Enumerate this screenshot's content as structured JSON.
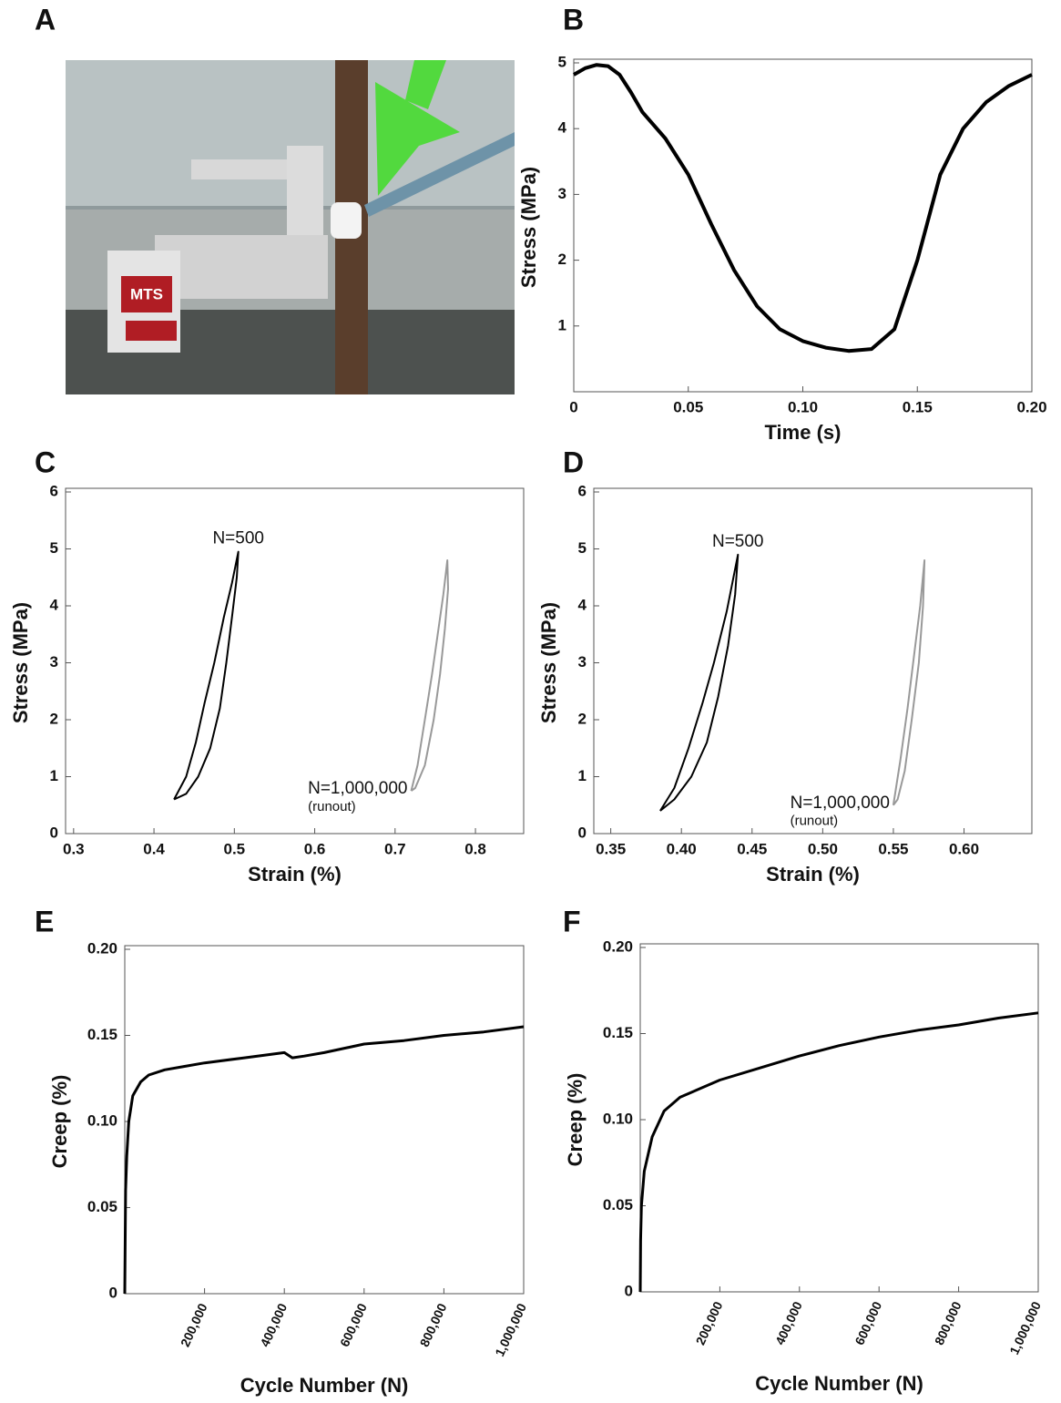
{
  "photo": {
    "panel": "A",
    "label": "MTS"
  },
  "chart_data": [
    {
      "type": "line",
      "panel": "B",
      "xlabel": "Time (s)",
      "ylabel": "Stress (MPa)",
      "xlim": [
        0,
        0.2
      ],
      "ylim": [
        0,
        5
      ],
      "xticks": [
        0,
        0.05,
        {
          "value": 0.1,
          "label": "0.10"
        },
        0.15,
        {
          "value": 0.2,
          "label": "0.20"
        }
      ],
      "yticks": [
        1,
        2,
        3,
        4,
        5
      ],
      "series": [
        {
          "name": null,
          "color": "#000000",
          "x": [
            0,
            0.005,
            0.01,
            0.015,
            0.02,
            0.025,
            0.03,
            0.04,
            0.05,
            0.06,
            0.07,
            0.08,
            0.09,
            0.1,
            0.11,
            0.12,
            0.13,
            0.14,
            0.15,
            0.16,
            0.17,
            0.18,
            0.19,
            0.2
          ],
          "values": [
            4.82,
            4.92,
            4.97,
            4.95,
            4.82,
            4.55,
            4.25,
            3.85,
            3.3,
            2.55,
            1.85,
            1.3,
            0.95,
            0.77,
            0.67,
            0.62,
            0.65,
            0.95,
            2.0,
            3.3,
            4.0,
            4.4,
            4.65,
            4.82
          ]
        }
      ]
    },
    {
      "type": "line",
      "panel": "C",
      "xlabel": "Strain (%)",
      "ylabel": "Stress (MPa)",
      "xlim": [
        0.29,
        0.86
      ],
      "ylim": [
        0,
        6
      ],
      "xticks": [
        0.3,
        0.4,
        0.5,
        0.6,
        0.7,
        0.8
      ],
      "yticks": [
        0,
        1,
        2,
        3,
        4,
        5,
        6
      ],
      "series": [
        {
          "name": "N=500",
          "color": "#000000",
          "x": [
            0.425,
            0.44,
            0.452,
            0.463,
            0.475,
            0.487,
            0.497,
            0.505,
            0.503,
            0.497,
            0.49,
            0.482,
            0.47,
            0.455,
            0.44,
            0.425
          ],
          "values": [
            0.6,
            1.0,
            1.6,
            2.3,
            3.0,
            3.8,
            4.4,
            4.95,
            4.5,
            3.8,
            3.0,
            2.2,
            1.5,
            1.0,
            0.7,
            0.6
          ]
        },
        {
          "name": "N=1,000,000",
          "note": "(runout)",
          "color": "#999999",
          "x": [
            0.72,
            0.728,
            0.737,
            0.746,
            0.754,
            0.76,
            0.765,
            0.766,
            0.762,
            0.756,
            0.748,
            0.737,
            0.725,
            0.72
          ],
          "values": [
            0.75,
            1.2,
            2.0,
            2.8,
            3.6,
            4.2,
            4.8,
            4.3,
            3.6,
            2.8,
            2.0,
            1.2,
            0.8,
            0.75
          ]
        }
      ]
    },
    {
      "type": "line",
      "panel": "D",
      "xlabel": "Strain (%)",
      "ylabel": "Stress (MPa)",
      "xlim": [
        0.338,
        0.648
      ],
      "ylim": [
        0,
        6
      ],
      "xticks": [
        0.35,
        {
          "value": 0.4,
          "label": "0.40"
        },
        0.45,
        {
          "value": 0.5,
          "label": "0.50"
        },
        0.55,
        {
          "value": 0.6,
          "label": "0.60"
        }
      ],
      "yticks": [
        0,
        1,
        2,
        3,
        4,
        5,
        6
      ],
      "series": [
        {
          "name": "N=500",
          "color": "#000000",
          "x": [
            0.385,
            0.395,
            0.405,
            0.415,
            0.423,
            0.432,
            0.44,
            0.438,
            0.433,
            0.426,
            0.418,
            0.407,
            0.395,
            0.385
          ],
          "values": [
            0.4,
            0.8,
            1.5,
            2.3,
            3.0,
            3.9,
            4.9,
            4.2,
            3.3,
            2.4,
            1.6,
            1.0,
            0.6,
            0.4
          ]
        },
        {
          "name": "N=1,000,000",
          "note": "(runout)",
          "color": "#999999",
          "x": [
            0.55,
            0.555,
            0.56,
            0.565,
            0.569,
            0.572,
            0.571,
            0.568,
            0.563,
            0.558,
            0.553,
            0.55
          ],
          "values": [
            0.5,
            1.3,
            2.2,
            3.2,
            4.0,
            4.8,
            4.0,
            3.0,
            2.0,
            1.1,
            0.6,
            0.5
          ]
        }
      ]
    },
    {
      "type": "line",
      "panel": "E",
      "xlabel": "Cycle Number (N)",
      "ylabel": "Creep (%)",
      "xlim": [
        0,
        1000000
      ],
      "ylim": [
        0,
        0.2
      ],
      "xticks": [
        {
          "value": 200000,
          "label": "200,000"
        },
        {
          "value": 400000,
          "label": "400,000"
        },
        {
          "value": 600000,
          "label": "600,000"
        },
        {
          "value": 800000,
          "label": "800,000"
        },
        {
          "value": 1000000,
          "label": "1,000,000"
        }
      ],
      "yticks": [
        0,
        0.05,
        {
          "value": 0.1,
          "label": "0.10"
        },
        0.15,
        {
          "value": 0.2,
          "label": "0.20"
        }
      ],
      "series": [
        {
          "name": null,
          "color": "#000000",
          "x": [
            0,
            2000,
            5000,
            10000,
            20000,
            40000,
            60000,
            100000,
            150000,
            200000,
            300000,
            400000,
            420000,
            450000,
            500000,
            600000,
            700000,
            800000,
            900000,
            1000000
          ],
          "values": [
            0,
            0.06,
            0.08,
            0.1,
            0.115,
            0.123,
            0.127,
            0.13,
            0.132,
            0.134,
            0.137,
            0.14,
            0.137,
            0.138,
            0.14,
            0.145,
            0.147,
            0.15,
            0.152,
            0.155
          ]
        }
      ]
    },
    {
      "type": "line",
      "panel": "F",
      "xlabel": "Cycle Number (N)",
      "ylabel": "Creep (%)",
      "xlim": [
        0,
        1000000
      ],
      "ylim": [
        0,
        0.2
      ],
      "xticks": [
        {
          "value": 200000,
          "label": "200,000"
        },
        {
          "value": 400000,
          "label": "400,000"
        },
        {
          "value": 600000,
          "label": "600,000"
        },
        {
          "value": 800000,
          "label": "800,000"
        },
        {
          "value": 1000000,
          "label": "1,000,000"
        }
      ],
      "yticks": [
        0,
        0.05,
        {
          "value": 0.1,
          "label": "0.10"
        },
        0.15,
        {
          "value": 0.2,
          "label": "0.20"
        }
      ],
      "series": [
        {
          "name": null,
          "color": "#000000",
          "x": [
            0,
            1000,
            3000,
            10000,
            30000,
            60000,
            100000,
            200000,
            300000,
            400000,
            500000,
            600000,
            700000,
            800000,
            900000,
            1000000
          ],
          "values": [
            0,
            0.03,
            0.05,
            0.07,
            0.09,
            0.105,
            0.113,
            0.123,
            0.13,
            0.137,
            0.143,
            0.148,
            0.152,
            0.155,
            0.159,
            0.162
          ]
        }
      ]
    }
  ]
}
